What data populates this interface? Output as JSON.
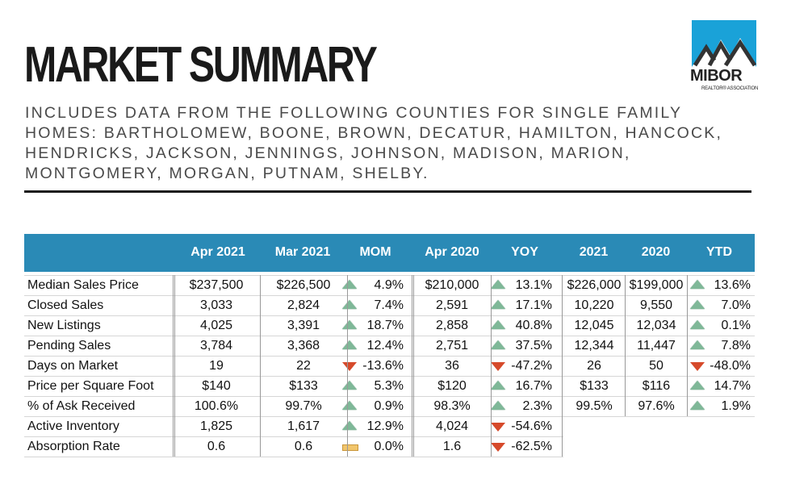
{
  "title": "MARKET SUMMARY",
  "subtitle": "INCLUDES DATA FROM THE FOLLOWING COUNTIES FOR SINGLE FAMILY HOMES: BARTHOLOMEW, BOONE, BROWN, DECATUR, HAMILTON, HANCOCK, HENDRICKS, JACKSON, JENNINGS, JOHNSON, MADISON, MARION, MONTGOMERY, MORGAN, PUTNAM, SHELBY.",
  "logo": {
    "word": "MIBOR",
    "tagline": "REALTOR® ASSOCIATION"
  },
  "colors": {
    "header_bg": "#2a8ab6",
    "up": "#7fb898",
    "down": "#d64a2b",
    "flat": "#f1c56b"
  },
  "columns": [
    "Apr 2021",
    "Mar 2021",
    "MOM",
    "Apr 2020",
    "YOY",
    "2021",
    "2020",
    "YTD"
  ],
  "rows": [
    {
      "label": "Median Sales Price",
      "apr2021": "$237,500",
      "mar2021": "$226,500",
      "mom": {
        "dir": "up",
        "value": "4.9%"
      },
      "apr2020": "$210,000",
      "yoy": {
        "dir": "up",
        "value": "13.1%"
      },
      "y2021": "$226,000",
      "y2020": "$199,000",
      "ytd": {
        "dir": "up",
        "value": "13.6%"
      }
    },
    {
      "label": "Closed Sales",
      "apr2021": "3,033",
      "mar2021": "2,824",
      "mom": {
        "dir": "up",
        "value": "7.4%"
      },
      "apr2020": "2,591",
      "yoy": {
        "dir": "up",
        "value": "17.1%"
      },
      "y2021": "10,220",
      "y2020": "9,550",
      "ytd": {
        "dir": "up",
        "value": "7.0%"
      }
    },
    {
      "label": "New Listings",
      "apr2021": "4,025",
      "mar2021": "3,391",
      "mom": {
        "dir": "up",
        "value": "18.7%"
      },
      "apr2020": "2,858",
      "yoy": {
        "dir": "up",
        "value": "40.8%"
      },
      "y2021": "12,045",
      "y2020": "12,034",
      "ytd": {
        "dir": "up",
        "value": "0.1%"
      }
    },
    {
      "label": "Pending Sales",
      "apr2021": "3,784",
      "mar2021": "3,368",
      "mom": {
        "dir": "up",
        "value": "12.4%"
      },
      "apr2020": "2,751",
      "yoy": {
        "dir": "up",
        "value": "37.5%"
      },
      "y2021": "12,344",
      "y2020": "11,447",
      "ytd": {
        "dir": "up",
        "value": "7.8%"
      }
    },
    {
      "label": "Days on Market",
      "apr2021": "19",
      "mar2021": "22",
      "mom": {
        "dir": "down",
        "value": "-13.6%"
      },
      "apr2020": "36",
      "yoy": {
        "dir": "down",
        "value": "-47.2%"
      },
      "y2021": "26",
      "y2020": "50",
      "ytd": {
        "dir": "down",
        "value": "-48.0%"
      }
    },
    {
      "label": "Price per Square Foot",
      "apr2021": "$140",
      "mar2021": "$133",
      "mom": {
        "dir": "up",
        "value": "5.3%"
      },
      "apr2020": "$120",
      "yoy": {
        "dir": "up",
        "value": "16.7%"
      },
      "y2021": "$133",
      "y2020": "$116",
      "ytd": {
        "dir": "up",
        "value": "14.7%"
      }
    },
    {
      "label": "% of Ask Received",
      "apr2021": "100.6%",
      "mar2021": "99.7%",
      "mom": {
        "dir": "up",
        "value": "0.9%"
      },
      "apr2020": "98.3%",
      "yoy": {
        "dir": "up",
        "value": "2.3%"
      },
      "y2021": "99.5%",
      "y2020": "97.6%",
      "ytd": {
        "dir": "up",
        "value": "1.9%"
      }
    },
    {
      "label": "Active Inventory",
      "apr2021": "1,825",
      "mar2021": "1,617",
      "mom": {
        "dir": "up",
        "value": "12.9%"
      },
      "apr2020": "4,024",
      "yoy": {
        "dir": "down",
        "value": "-54.6%"
      },
      "y2021": "",
      "y2020": "",
      "ytd": null
    },
    {
      "label": "Absorption Rate",
      "apr2021": "0.6",
      "mar2021": "0.6",
      "mom": {
        "dir": "flat",
        "value": "0.0%"
      },
      "apr2020": "1.6",
      "yoy": {
        "dir": "down",
        "value": "-62.5%"
      },
      "y2021": "",
      "y2020": "",
      "ytd": null
    }
  ]
}
